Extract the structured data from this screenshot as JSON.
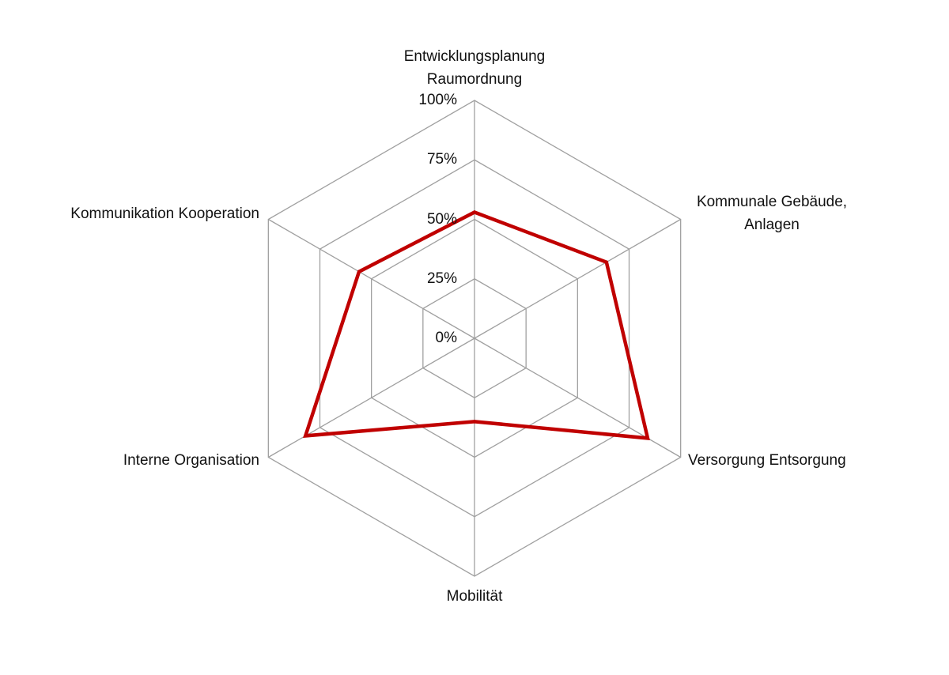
{
  "chart_data": {
    "type": "radar",
    "categories": [
      "Entwicklungsplanung Raumordnung",
      "Kommunale Gebäude, Anlagen",
      "Versorgung Entsorgung",
      "Mobilität",
      "Interne Organisation",
      "Kommunikation Kooperation"
    ],
    "series": [
      {
        "color": "#c00000",
        "values": [
          53,
          64,
          84,
          35,
          82,
          56
        ]
      }
    ],
    "rlim": [
      0,
      100
    ],
    "rticks": [
      {
        "value": 0,
        "label": "0%"
      },
      {
        "value": 25,
        "label": "25%"
      },
      {
        "value": 50,
        "label": "50%"
      },
      {
        "value": 75,
        "label": "75%"
      },
      {
        "value": 100,
        "label": "100%"
      }
    ],
    "grid": true
  }
}
